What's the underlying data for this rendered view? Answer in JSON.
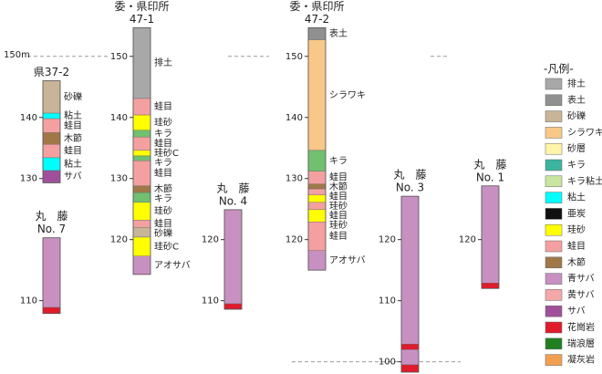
{
  "scale": {
    "ylim": [
      154,
      98
    ]
  },
  "reference_lines": [
    {
      "value": 150,
      "label": "150m"
    },
    {
      "value": 100
    }
  ],
  "columns": [
    {
      "title": [
        "県37-2"
      ],
      "ticks": [
        140,
        130
      ],
      "layers": [
        {
          "label": "砂礫",
          "top": 146,
          "bottom": 140.7,
          "color": "#c8b496"
        },
        {
          "label": "粘土",
          "top": 140.7,
          "bottom": 139.8,
          "color": "#00ffff"
        },
        {
          "label": "蛙目",
          "top": 139.8,
          "bottom": 137.5,
          "color": "#f4a0a0"
        },
        {
          "label": "木節",
          "top": 137.5,
          "bottom": 135.6,
          "color": "#a07848"
        },
        {
          "label": "蛙目",
          "top": 135.6,
          "bottom": 133.4,
          "color": "#f4a0a0"
        },
        {
          "label": "粘土",
          "top": 133.4,
          "bottom": 131.3,
          "color": "#00ffff"
        },
        {
          "label": "サバ",
          "top": 131.3,
          "bottom": 129.3,
          "color": "#a0509a"
        }
      ]
    },
    {
      "title": [
        "丸　藤",
        "No. 7"
      ],
      "ticks": [
        110
      ],
      "layers": [
        {
          "top": 120.3,
          "bottom": 108.9,
          "color": "#c890c0"
        },
        {
          "top": 108.9,
          "bottom": 107.9,
          "color": "#e01c2c"
        }
      ]
    },
    {
      "title": [
        "委・県印所",
        "47-1"
      ],
      "ticks": [
        150,
        140,
        130,
        120
      ],
      "layers": [
        {
          "label": "排土",
          "top": 154.7,
          "bottom": 143.1,
          "color": "#a8a8a8"
        },
        {
          "label": "蛙目",
          "top": 143.1,
          "bottom": 140.4,
          "color": "#f4a0a0"
        },
        {
          "label": "珪砂",
          "top": 140.4,
          "bottom": 137.9,
          "color": "#ffff00"
        },
        {
          "label": "キラ",
          "top": 137.9,
          "bottom": 136.8,
          "color": "#70c070"
        },
        {
          "label": "蛙目",
          "top": 136.8,
          "bottom": 134.6,
          "color": "#f4a0a0"
        },
        {
          "label": "珪砂C",
          "top": 134.6,
          "bottom": 133.7,
          "color": "#ffff00"
        },
        {
          "label": "キラ",
          "top": 133.7,
          "bottom": 132.9,
          "color": "#70c070"
        },
        {
          "label": "蛙目",
          "top": 132.9,
          "bottom": 128.8,
          "color": "#f4a0a0"
        },
        {
          "label": "木節",
          "top": 128.8,
          "bottom": 127.7,
          "color": "#a07848"
        },
        {
          "label": "キラ",
          "top": 127.7,
          "bottom": 126.1,
          "color": "#70c070"
        },
        {
          "label": "珪砂",
          "top": 126.1,
          "bottom": 123.2,
          "color": "#ffff00"
        },
        {
          "label": "蛙目",
          "top": 123.2,
          "bottom": 122,
          "color": "#f4a0a0"
        },
        {
          "label": "砂礫",
          "top": 122,
          "bottom": 120.4,
          "color": "#c8b496"
        },
        {
          "label": "珪砂C",
          "top": 120.4,
          "bottom": 117.3,
          "color": "#ffff00"
        },
        {
          "label": "アオサバ",
          "top": 117.3,
          "bottom": 114.3,
          "color": "#c890c0"
        }
      ]
    },
    {
      "title": [
        "丸　藤",
        "No. 4"
      ],
      "ticks": [
        120,
        110
      ],
      "layers": [
        {
          "top": 124.9,
          "bottom": 109.5,
          "color": "#c890c0"
        },
        {
          "top": 109.5,
          "bottom": 108.6,
          "color": "#e01c2c"
        }
      ]
    },
    {
      "title": [
        "委・県印所",
        "47-2"
      ],
      "ticks": [
        150,
        140,
        130,
        120
      ],
      "layers": [
        {
          "label": "表土",
          "top": 154.7,
          "bottom": 152.7,
          "color": "#909090"
        },
        {
          "label": "シラワキ",
          "top": 152.7,
          "bottom": 134.6,
          "color": "#f8c888"
        },
        {
          "label": "キラ",
          "top": 134.6,
          "bottom": 131.2,
          "color": "#70c070"
        },
        {
          "label": "蛙目",
          "top": 131.2,
          "bottom": 129.1,
          "color": "#f4a0a0"
        },
        {
          "label": "木節",
          "top": 129.1,
          "bottom": 128.3,
          "color": "#a07848"
        },
        {
          "label": "蛙目",
          "top": 128.3,
          "bottom": 127.3,
          "color": "#f4a0a0"
        },
        {
          "label": "珪砂",
          "top": 127.3,
          "bottom": 126.1,
          "color": "#ffff00"
        },
        {
          "label": "蛙目",
          "top": 126.1,
          "bottom": 124.9,
          "color": "#f4a0a0"
        },
        {
          "label": "珪砂",
          "top": 124.9,
          "bottom": 122.9,
          "color": "#ffff00"
        },
        {
          "label": "蛙目",
          "top": 122.9,
          "bottom": 118.2,
          "color": "#f4a0a0"
        },
        {
          "label": "アオサバ",
          "top": 118.2,
          "bottom": 115,
          "color": "#c890c0"
        }
      ]
    },
    {
      "title": [
        "丸　藤",
        "No. 3"
      ],
      "ticks": [
        120,
        110,
        100
      ],
      "layers": [
        {
          "top": 127.1,
          "bottom": 102.9,
          "color": "#c890c0"
        },
        {
          "top": 102.9,
          "bottom": 102,
          "color": "#e01c2c"
        },
        {
          "top": 102,
          "bottom": 99.5,
          "color": "#c890c0"
        },
        {
          "top": 99.5,
          "bottom": 98.3,
          "color": "#e01c2c"
        }
      ]
    },
    {
      "title": [
        "丸　藤",
        "No. 1"
      ],
      "ticks": [
        120
      ],
      "layers": [
        {
          "top": 128.8,
          "bottom": 112.9,
          "color": "#c890c0"
        },
        {
          "top": 112.9,
          "bottom": 112,
          "color": "#e01c2c"
        }
      ]
    }
  ],
  "legend": {
    "title": "-凡例-",
    "items": [
      {
        "label": "排土",
        "color": "#a8a8a8"
      },
      {
        "label": "表土",
        "color": "#909090"
      },
      {
        "label": "砂礫",
        "color": "#c8b496"
      },
      {
        "label": "シラワキ",
        "color": "#f8c888"
      },
      {
        "label": "砂層",
        "color": "#fff4a8"
      },
      {
        "label": "キラ",
        "color": "#3cb4a0"
      },
      {
        "label": "キラ粘土",
        "color": "#c8e6a0"
      },
      {
        "label": "粘土",
        "color": "#00ffff"
      },
      {
        "label": "亜炭",
        "color": "#111111"
      },
      {
        "label": "珪砂",
        "color": "#ffff00"
      },
      {
        "label": "蛙目",
        "color": "#f4a0a0"
      },
      {
        "label": "木節",
        "color": "#a07848"
      },
      {
        "label": "青サバ",
        "color": "#c890c0"
      },
      {
        "label": "黄サバ",
        "color": "#f4a8a8"
      },
      {
        "label": "サバ",
        "color": "#a0509a"
      },
      {
        "label": "花崗岩",
        "color": "#e01c2c"
      },
      {
        "label": "瑞浪層",
        "color": "#208020"
      },
      {
        "label": "凝灰岩",
        "color": "#f0a050"
      }
    ]
  }
}
